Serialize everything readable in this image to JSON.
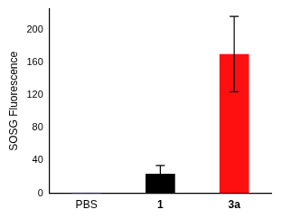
{
  "chart_data": {
    "type": "bar",
    "y_label": "SOSG Fluorescence",
    "categories": [
      "PBS",
      "1",
      "3a"
    ],
    "values": [
      1,
      24,
      170
    ],
    "errors": [
      0,
      10,
      46
    ],
    "colors": [
      "#9a9ad8",
      "#000000",
      "#ff1010"
    ],
    "ylim": [
      0,
      225
    ],
    "yticks": [
      0,
      40,
      80,
      120,
      160,
      200
    ],
    "grid": false
  }
}
